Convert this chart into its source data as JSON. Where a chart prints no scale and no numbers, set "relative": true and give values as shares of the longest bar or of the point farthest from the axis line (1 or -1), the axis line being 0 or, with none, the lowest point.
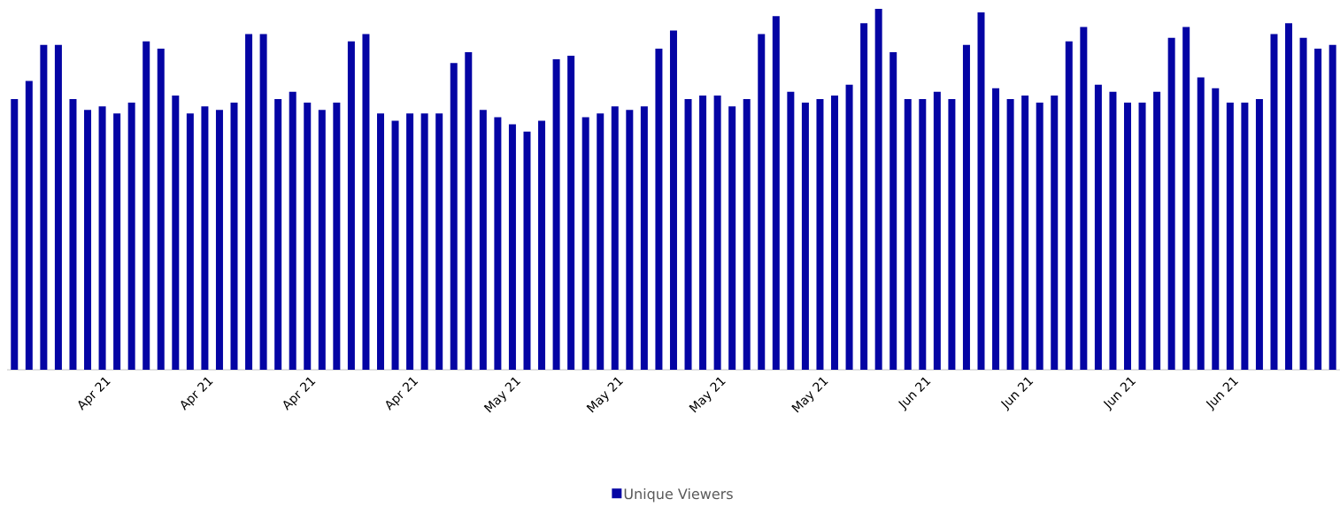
{
  "chart_data": {
    "type": "bar",
    "relative": true,
    "legend": "bottom",
    "categories": [
      null,
      null,
      null,
      null,
      null,
      null,
      "Apr 21",
      null,
      null,
      null,
      null,
      null,
      null,
      "Apr 21",
      null,
      null,
      null,
      null,
      null,
      null,
      "Apr 21",
      null,
      null,
      null,
      null,
      null,
      null,
      "Apr 21",
      null,
      null,
      null,
      null,
      null,
      null,
      "May 21",
      null,
      null,
      null,
      null,
      null,
      null,
      "May 21",
      null,
      null,
      null,
      null,
      null,
      null,
      "May 21",
      null,
      null,
      null,
      null,
      null,
      null,
      "May 21",
      null,
      null,
      null,
      null,
      null,
      null,
      "Jun 21",
      null,
      null,
      null,
      null,
      null,
      null,
      "Jun 21",
      null,
      null,
      null,
      null,
      null,
      null,
      "Jun 21",
      null,
      null,
      null,
      null,
      null,
      null,
      "Jun 21",
      null,
      null,
      null,
      null,
      null,
      null,
      null
    ],
    "series": [
      {
        "name": "Unique Viewers",
        "color": "#0404a4",
        "values": [
          0.75,
          0.8,
          0.9,
          0.9,
          0.75,
          0.72,
          0.73,
          0.71,
          0.74,
          0.91,
          0.89,
          0.76,
          0.71,
          0.73,
          0.72,
          0.74,
          0.93,
          0.93,
          0.75,
          0.77,
          0.74,
          0.72,
          0.74,
          0.91,
          0.93,
          0.71,
          0.69,
          0.71,
          0.71,
          0.71,
          0.85,
          0.88,
          0.72,
          0.7,
          0.68,
          0.66,
          0.69,
          0.86,
          0.87,
          0.7,
          0.71,
          0.73,
          0.72,
          0.73,
          0.89,
          0.94,
          0.75,
          0.76,
          0.76,
          0.73,
          0.75,
          0.93,
          0.98,
          0.77,
          0.74,
          0.75,
          0.76,
          0.79,
          0.96,
          1,
          0.88,
          0.75,
          0.75,
          0.77,
          0.75,
          0.9,
          0.99,
          0.78,
          0.75,
          0.76,
          0.74,
          0.76,
          0.91,
          0.95,
          0.79,
          0.77,
          0.74,
          0.74,
          0.77,
          0.92,
          0.95,
          0.81,
          0.78,
          0.74,
          0.74,
          0.75,
          0.93,
          0.96,
          0.92,
          0.89,
          0.9
        ]
      }
    ]
  }
}
